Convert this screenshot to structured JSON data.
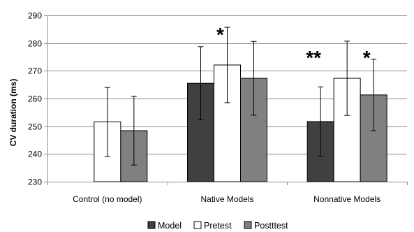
{
  "chart_data": {
    "type": "bar",
    "title": "",
    "xlabel": "",
    "ylabel": "CV duration (ms)",
    "ylim": [
      230,
      290
    ],
    "yticks": [
      230,
      240,
      250,
      260,
      270,
      280,
      290
    ],
    "grid": true,
    "legend_position": "bottom",
    "categories": [
      "Control (no model)",
      "Native Models",
      "Nonnative Models"
    ],
    "series": [
      {
        "name": "Model",
        "color": "#404040",
        "values": [
          null,
          265.5,
          251.7
        ],
        "errors": [
          null,
          13.2,
          12.5
        ]
      },
      {
        "name": "Pretest",
        "color": "#ffffff",
        "values": [
          251.6,
          272.1,
          267.3
        ],
        "errors": [
          12.4,
          13.6,
          13.4
        ]
      },
      {
        "name": "Postttest",
        "color": "#808080",
        "values": [
          248.4,
          267.3,
          261.3
        ],
        "errors": [
          12.4,
          13.3,
          12.9
        ]
      }
    ],
    "annotations": [
      {
        "text": "*",
        "category": "Native Models",
        "series": "Pretest"
      },
      {
        "text": "**",
        "category": "Nonnative Models",
        "series": "Model"
      },
      {
        "text": "*",
        "category": "Nonnative Models",
        "series": "Postttest"
      }
    ]
  }
}
